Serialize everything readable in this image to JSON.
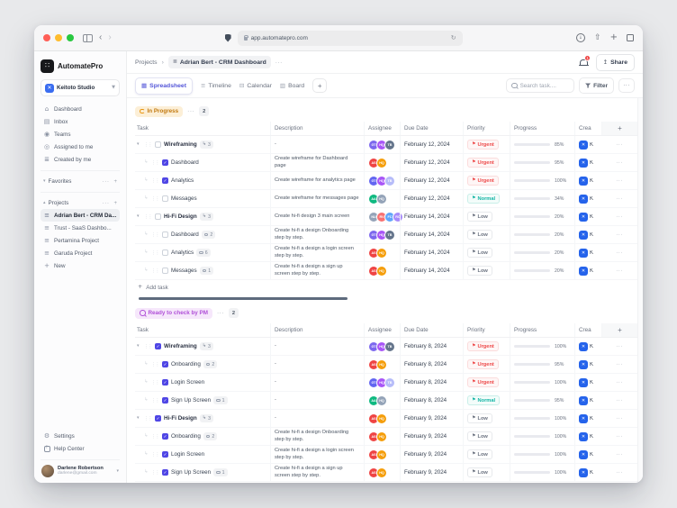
{
  "browser": {
    "url": "app.automatepro.com"
  },
  "brand": {
    "name": "AutomatePro"
  },
  "workspace": {
    "name": "Keitoto Studio"
  },
  "sidebar": {
    "nav": [
      {
        "label": "Dashboard",
        "icon": "home"
      },
      {
        "label": "Inbox",
        "icon": "inbox"
      },
      {
        "label": "Teams",
        "icon": "users"
      },
      {
        "label": "Assigned to me",
        "icon": "target"
      },
      {
        "label": "Created by me",
        "icon": "list"
      }
    ],
    "favorites_label": "Favorites",
    "projects_label": "Projects",
    "projects": [
      {
        "label": "Adrian Bert - CRM Da...",
        "active": true
      },
      {
        "label": "Trust - SaaS Dashbo...",
        "active": false
      },
      {
        "label": "Pertamina Project",
        "active": false
      },
      {
        "label": "Garuda Project",
        "active": false
      }
    ],
    "new_label": "New",
    "settings_label": "Settings",
    "help_label": "Help Center",
    "user": {
      "name": "Darlene Robertson",
      "email": "darlene@gmail.com"
    }
  },
  "topbar": {
    "breadcrumb_root": "Projects",
    "breadcrumb_current": "Adrian Bert - CRM Dashboard",
    "notification_count": "1",
    "share_label": "Share"
  },
  "view_tabs": [
    {
      "label": "Spreadsheet",
      "icon": "grid",
      "active": true
    },
    {
      "label": "Timeline",
      "icon": "lines",
      "active": false
    },
    {
      "label": "Calendar",
      "icon": "calendar",
      "active": false
    },
    {
      "label": "Board",
      "icon": "board",
      "active": false
    }
  ],
  "toolbar": {
    "search_placeholder": "Search task....",
    "filter_label": "Filter"
  },
  "table": {
    "columns": [
      "Task",
      "Description",
      "Assignee",
      "Due Date",
      "Priority",
      "Progress",
      "Crea"
    ],
    "created_text": "K",
    "add_task_label": "Add task"
  },
  "status_colors": {
    "urgent": "#ee4949",
    "normal": "#12b5a5",
    "low": "#6b7280",
    "accent": "#5a5bd7",
    "in_progress_badge": "#c2790e",
    "ready_pm_badge": "#b050d8"
  },
  "groups": [
    {
      "label": "In Progress",
      "theme": "orange",
      "count": "2",
      "rows": [
        {
          "task": "Wireframing",
          "parent": true,
          "checked": false,
          "subtasks": "3",
          "comments": null,
          "desc": "-",
          "due": "February 12, 2024",
          "priority": "Urgent",
          "progress": 85,
          "assignees": [
            {
              "t": "GT",
              "c": "#7c68ee"
            },
            {
              "t": "HQ",
              "c": "#a855f7"
            },
            {
              "t": "TB",
              "c": "#64748b"
            }
          ]
        },
        {
          "task": "Dashboard",
          "parent": false,
          "checked": true,
          "subtasks": null,
          "comments": null,
          "desc": "Create wireframe for Dashboard page",
          "due": "February 12, 2024",
          "priority": "Urgent",
          "progress": 95,
          "assignees": [
            {
              "t": "AS",
              "c": "#ef4444"
            },
            {
              "t": "HQ",
              "c": "#f59e0b"
            }
          ]
        },
        {
          "task": "Analytics",
          "parent": false,
          "checked": true,
          "subtasks": null,
          "comments": null,
          "desc": "Create wireframe for analytics page",
          "due": "February 12, 2024",
          "priority": "Urgent",
          "progress": 100,
          "assignees": [
            {
              "t": "GT",
              "c": "#6366f1"
            },
            {
              "t": "HQ",
              "c": "#a855f7"
            },
            {
              "t": "TB",
              "c": "#b6bcf9"
            }
          ]
        },
        {
          "task": "Messages",
          "parent": false,
          "checked": false,
          "subtasks": null,
          "comments": null,
          "desc": "Create wireframe for messages page",
          "due": "February 12, 2024",
          "priority": "Normal",
          "progress": 34,
          "assignees": [
            {
              "t": "AA",
              "c": "#10b981"
            },
            {
              "t": "HQ",
              "c": "#94a3b8"
            }
          ]
        },
        {
          "task": "Hi-Fi Design",
          "parent": true,
          "checked": false,
          "subtasks": "3",
          "comments": null,
          "desc": "Create hi-fi design  3 main screen",
          "due": "February 14, 2024",
          "priority": "Low",
          "progress": 20,
          "assignees": [
            {
              "t": "NU",
              "c": "#94a3b8"
            },
            {
              "t": "RV",
              "c": "#f87171"
            },
            {
              "t": "FC",
              "c": "#60a5fa"
            },
            {
              "t": "RO",
              "c": "#a78bfa"
            }
          ]
        },
        {
          "task": "Dashboard",
          "parent": false,
          "checked": false,
          "subtasks": null,
          "comments": "2",
          "desc": "Create hi-fi a design Onboarding step by step.",
          "due": "February 14, 2024",
          "priority": "Low",
          "progress": 20,
          "assignees": [
            {
              "t": "GT",
              "c": "#7c68ee"
            },
            {
              "t": "HQ",
              "c": "#a855f7"
            },
            {
              "t": "TB",
              "c": "#64748b"
            }
          ]
        },
        {
          "task": "Analytics",
          "parent": false,
          "checked": false,
          "subtasks": null,
          "comments": "6",
          "desc": "Create hi-fi a design a login screen step by step.",
          "due": "February 14, 2024",
          "priority": "Low",
          "progress": 20,
          "assignees": [
            {
              "t": "AS",
              "c": "#ef4444"
            },
            {
              "t": "HQ",
              "c": "#f59e0b"
            }
          ]
        },
        {
          "task": "Messages",
          "parent": false,
          "checked": false,
          "subtasks": null,
          "comments": "1",
          "desc": "Create hi-fi a design a sign up screen step by step.",
          "due": "February 14, 2024",
          "priority": "Low",
          "progress": 20,
          "assignees": [
            {
              "t": "AS",
              "c": "#ef4444"
            },
            {
              "t": "HQ",
              "c": "#f59e0b"
            }
          ]
        }
      ]
    },
    {
      "label": "Ready to check by PM",
      "theme": "purple",
      "count": "2",
      "rows": [
        {
          "task": "Wireframing",
          "parent": true,
          "checked": true,
          "subtasks": "3",
          "comments": null,
          "desc": "-",
          "due": "February 8, 2024",
          "priority": "Urgent",
          "progress": 100,
          "assignees": [
            {
              "t": "GT",
              "c": "#7c68ee"
            },
            {
              "t": "HQ",
              "c": "#a855f7"
            },
            {
              "t": "TB",
              "c": "#64748b"
            }
          ]
        },
        {
          "task": "Onboarding",
          "parent": false,
          "checked": true,
          "subtasks": null,
          "comments": "2",
          "desc": "-",
          "due": "February 8, 2024",
          "priority": "Urgent",
          "progress": 95,
          "assignees": [
            {
              "t": "AS",
              "c": "#ef4444"
            },
            {
              "t": "HQ",
              "c": "#f59e0b"
            }
          ]
        },
        {
          "task": "Login Screen",
          "parent": false,
          "checked": true,
          "subtasks": null,
          "comments": null,
          "desc": "-",
          "due": "February 8, 2024",
          "priority": "Urgent",
          "progress": 100,
          "assignees": [
            {
              "t": "GT",
              "c": "#6366f1"
            },
            {
              "t": "HQ",
              "c": "#a855f7"
            },
            {
              "t": "TB",
              "c": "#b6bcf9"
            }
          ]
        },
        {
          "task": "Sign Up Screen",
          "parent": false,
          "checked": true,
          "subtasks": null,
          "comments": "1",
          "desc": "-",
          "due": "February 8, 2024",
          "priority": "Normal",
          "progress": 95,
          "assignees": [
            {
              "t": "AA",
              "c": "#10b981"
            },
            {
              "t": "HQ",
              "c": "#94a3b8"
            }
          ]
        },
        {
          "task": "Hi-Fi Design",
          "parent": true,
          "checked": true,
          "subtasks": "3",
          "comments": null,
          "desc": "-",
          "due": "February 9, 2024",
          "priority": "Low",
          "progress": 100,
          "assignees": [
            {
              "t": "AS",
              "c": "#ef4444"
            },
            {
              "t": "HQ",
              "c": "#f59e0b"
            }
          ]
        },
        {
          "task": "Onboarding",
          "parent": false,
          "checked": true,
          "subtasks": null,
          "comments": "2",
          "desc": "Create hi-fi a design Onboarding step by step.",
          "due": "February 9, 2024",
          "priority": "Low",
          "progress": 100,
          "assignees": [
            {
              "t": "AS",
              "c": "#ef4444"
            },
            {
              "t": "HQ",
              "c": "#f59e0b"
            }
          ]
        },
        {
          "task": "Login Screen",
          "parent": false,
          "checked": true,
          "subtasks": null,
          "comments": null,
          "desc": "Create hi-fi a design a login screen step by step.",
          "due": "February 9, 2024",
          "priority": "Low",
          "progress": 100,
          "assignees": [
            {
              "t": "AS",
              "c": "#ef4444"
            },
            {
              "t": "HQ",
              "c": "#f59e0b"
            }
          ]
        },
        {
          "task": "Sign Up Screen",
          "parent": false,
          "checked": true,
          "subtasks": null,
          "comments": "1",
          "desc": "Create hi-fi a design a sign up screen step by step.",
          "due": "February 9, 2024",
          "priority": "Low",
          "progress": 100,
          "assignees": [
            {
              "t": "AS",
              "c": "#ef4444"
            },
            {
              "t": "HQ",
              "c": "#f59e0b"
            }
          ]
        }
      ]
    }
  ]
}
